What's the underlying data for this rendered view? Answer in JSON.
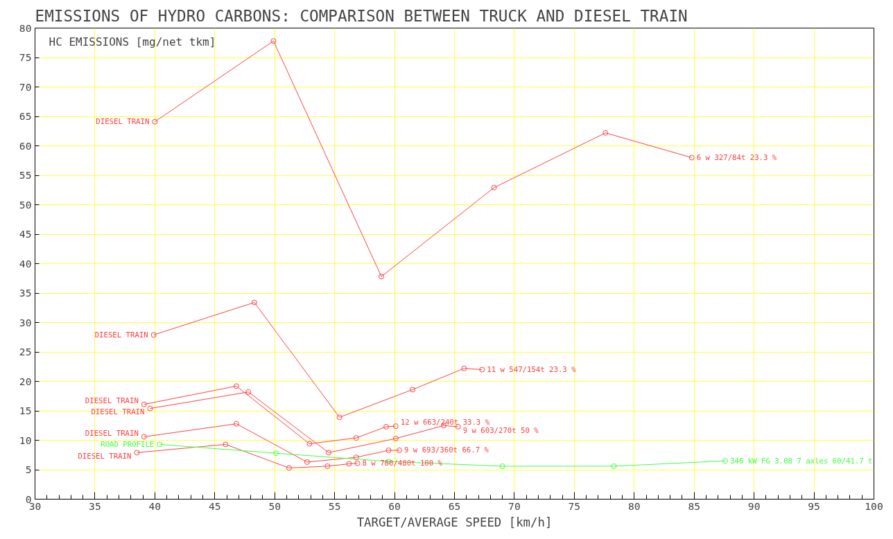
{
  "chart_data": {
    "type": "line",
    "title": "EMISSIONS OF HYDRO CARBONS: COMPARISON BETWEEN TRUCK AND DIESEL TRAIN",
    "xlabel": "TARGET/AVERAGE SPEED [km/h]",
    "ylabel": "HC EMISSIONS [mg/net tkm]",
    "xlim": [
      30,
      100
    ],
    "xticks": [
      30,
      35,
      40,
      45,
      50,
      55,
      60,
      65,
      70,
      75,
      80,
      85,
      90,
      95,
      100
    ],
    "ylim": [
      0,
      80
    ],
    "yticks": [
      0,
      5,
      10,
      15,
      20,
      25,
      30,
      35,
      40,
      45,
      50,
      55,
      60,
      65,
      70,
      75,
      80
    ],
    "grid": true,
    "marker": "circle",
    "line_style": "solid",
    "series": [
      {
        "name": "6 w 327/84t 23.3 %",
        "color": "#ff4040",
        "x": [
          40.0,
          49.9,
          58.9,
          68.3,
          77.6,
          84.8
        ],
        "values": [
          64.1,
          77.8,
          37.8,
          52.9,
          62.2,
          58.0
        ]
      },
      {
        "name": "11 w 547/154t 23.3 %",
        "color": "#ff4040",
        "x": [
          39.9,
          48.3,
          55.4,
          61.5,
          65.8,
          67.3
        ],
        "values": [
          27.9,
          33.4,
          13.9,
          18.6,
          22.2,
          22.0
        ]
      },
      {
        "name": "12 w 663/240t 33.3 %",
        "color": "#ff4040",
        "x": [
          39.1,
          46.8,
          52.9,
          56.8,
          59.3,
          60.1
        ],
        "values": [
          16.1,
          19.2,
          9.4,
          10.4,
          12.3,
          12.4
        ]
      },
      {
        "name": "9 w 603/270t 50 %",
        "color": "#ff4040",
        "x": [
          39.6,
          47.8,
          54.5,
          60.1,
          64.1,
          65.3
        ],
        "values": [
          15.4,
          18.2,
          7.9,
          10.3,
          12.5,
          12.3
        ]
      },
      {
        "name": "9 w 693/360t 66.7 %",
        "color": "#ff4040",
        "x": [
          39.1,
          46.8,
          52.7,
          56.8,
          59.5,
          60.4
        ],
        "values": [
          10.6,
          12.8,
          6.3,
          7.1,
          8.3,
          8.3
        ]
      },
      {
        "name": "8 w 700/480t 100 %",
        "color": "#ff4040",
        "x": [
          38.5,
          45.9,
          51.2,
          54.4,
          56.2,
          56.9
        ],
        "values": [
          7.9,
          9.3,
          5.3,
          5.6,
          6.0,
          6.1
        ]
      },
      {
        "name": "346 kW FG 3.08  7 axles 60/41.7 t",
        "color": "#40ff40",
        "x": [
          40.4,
          50.1,
          59.5,
          69.0,
          78.3,
          87.6
        ],
        "values": [
          9.3,
          7.8,
          6.4,
          5.6,
          5.6,
          6.5
        ]
      }
    ],
    "annotations": [
      {
        "text": "DIESEL TRAIN",
        "x": 40.0,
        "y": 64.1
      },
      {
        "text": "DIESEL TRAIN",
        "x": 39.9,
        "y": 27.9
      },
      {
        "text": "DIESEL TRAIN",
        "x": 39.1,
        "y": 16.1
      },
      {
        "text": "DIESEL TRAIN",
        "x": 39.6,
        "y": 15.4
      },
      {
        "text": "DIESEL TRAIN",
        "x": 39.1,
        "y": 10.6
      },
      {
        "text": "DIESEL TRAIN",
        "x": 38.5,
        "y": 7.9
      },
      {
        "text": "ROAD PROFILE",
        "x": 40.4,
        "y": 9.3
      }
    ]
  }
}
